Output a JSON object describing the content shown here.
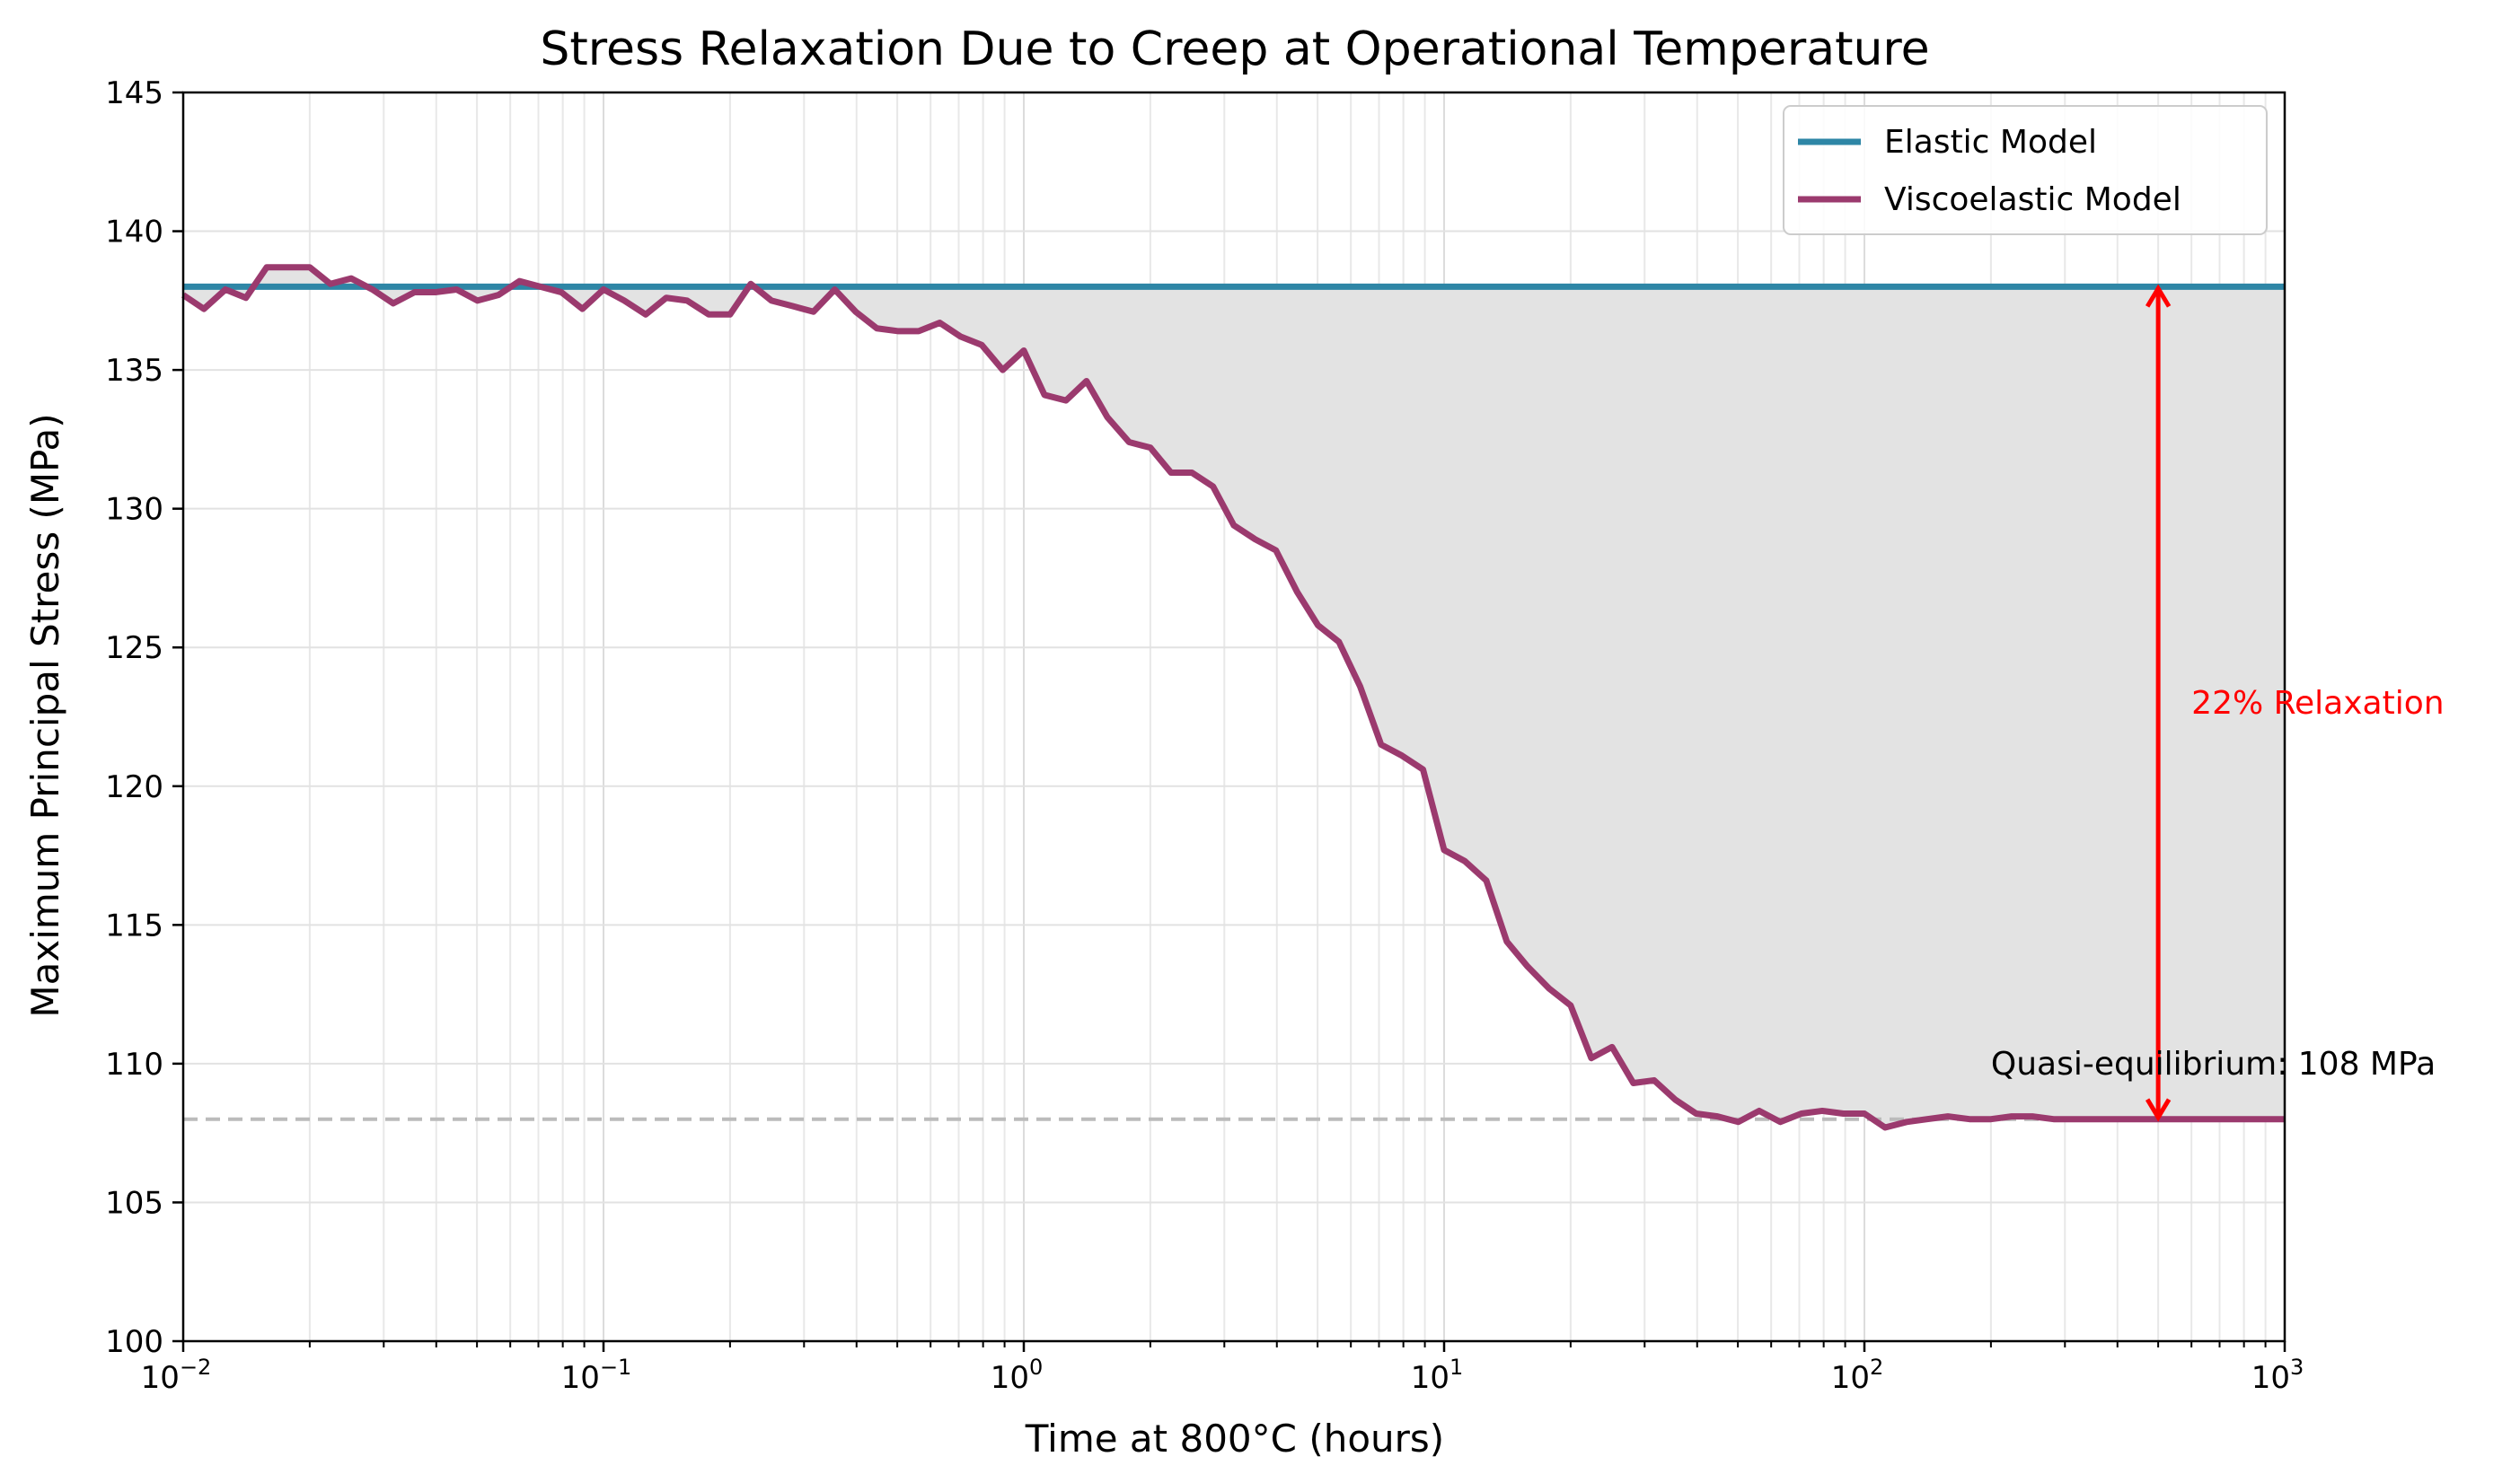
{
  "chart_data": {
    "type": "line",
    "title": "Stress Relaxation Due to Creep at Operational Temperature",
    "xlabel": "Time at 800°C (hours)",
    "ylabel": "Maximum Principal Stress (MPa)",
    "x_scale": "log",
    "xlim": [
      0.01,
      1000
    ],
    "ylim": [
      100,
      145
    ],
    "x_ticks": [
      {
        "value": 0.01,
        "base": "10",
        "exp": "−2"
      },
      {
        "value": 0.1,
        "base": "10",
        "exp": "−1"
      },
      {
        "value": 1,
        "base": "10",
        "exp": "0"
      },
      {
        "value": 10,
        "base": "10",
        "exp": "1"
      },
      {
        "value": 100,
        "base": "10",
        "exp": "2"
      },
      {
        "value": 1000,
        "base": "10",
        "exp": "3"
      }
    ],
    "y_ticks": [
      100,
      105,
      110,
      115,
      120,
      125,
      130,
      135,
      140,
      145
    ],
    "grid": true,
    "legend": "top-right",
    "series": [
      {
        "name": "Elastic Model",
        "color": "#2E86A6",
        "x": [
          0.01,
          1000
        ],
        "y": [
          138,
          138
        ]
      },
      {
        "name": "Viscoelastic Model",
        "color": "#9B3A6E",
        "x": [
          0.01,
          0.0112,
          0.0126,
          0.0141,
          0.0158,
          0.0178,
          0.02,
          0.0224,
          0.0251,
          0.0282,
          0.0316,
          0.0355,
          0.0398,
          0.0447,
          0.0501,
          0.0562,
          0.0631,
          0.0708,
          0.0794,
          0.0891,
          0.1,
          0.112,
          0.126,
          0.141,
          0.158,
          0.178,
          0.2,
          0.224,
          0.251,
          0.282,
          0.316,
          0.355,
          0.398,
          0.447,
          0.501,
          0.562,
          0.631,
          0.708,
          0.794,
          0.891,
          1.0,
          1.12,
          1.26,
          1.41,
          1.58,
          1.78,
          2.0,
          2.24,
          2.51,
          2.82,
          3.16,
          3.55,
          3.98,
          4.47,
          5.01,
          5.62,
          6.31,
          7.08,
          7.94,
          8.91,
          10.0,
          11.2,
          12.6,
          14.1,
          15.8,
          17.8,
          20.0,
          22.4,
          25.1,
          28.2,
          31.6,
          35.5,
          39.8,
          44.7,
          50.1,
          56.2,
          63.1,
          70.8,
          79.4,
          89.1,
          100,
          112,
          126,
          141,
          158,
          178,
          200,
          224,
          251,
          282,
          316,
          355,
          398,
          447,
          501,
          562,
          631,
          708,
          794,
          891,
          1000
        ],
        "y": [
          137.7,
          137.2,
          137.9,
          137.6,
          138.7,
          138.7,
          138.7,
          138.1,
          138.3,
          137.9,
          137.4,
          137.8,
          137.8,
          137.9,
          137.5,
          137.7,
          138.2,
          138.0,
          137.8,
          137.2,
          137.9,
          137.5,
          137.0,
          137.6,
          137.5,
          137.0,
          137.0,
          138.1,
          137.5,
          137.3,
          137.1,
          137.9,
          137.1,
          136.5,
          136.4,
          136.4,
          136.7,
          136.2,
          135.9,
          135.0,
          135.7,
          134.1,
          133.9,
          134.6,
          133.3,
          132.4,
          132.2,
          131.3,
          131.3,
          130.8,
          129.4,
          128.9,
          128.5,
          127.0,
          125.8,
          125.2,
          123.6,
          121.5,
          121.1,
          120.6,
          117.7,
          117.3,
          116.6,
          114.4,
          113.5,
          112.7,
          112.1,
          110.2,
          110.6,
          109.3,
          109.4,
          108.7,
          108.2,
          108.1,
          107.9,
          108.3,
          107.9,
          108.2,
          108.3,
          108.2,
          108.2,
          107.7,
          107.9,
          108.0,
          108.1,
          108.0,
          108.0,
          108.1,
          108.1,
          108.0,
          108.0,
          108.0,
          108.0,
          108.0,
          108.0,
          108.0,
          108.0,
          108.0,
          108.0,
          108.0,
          108.0
        ]
      }
    ],
    "fill_between": {
      "x_from": 0.01,
      "x_to": 1000,
      "upper": 138,
      "color": "#e3e3e3"
    },
    "reference_line": {
      "y": 108,
      "color": "#bbbbbb",
      "style": "dashed"
    },
    "annotations": [
      {
        "text": "22% Relaxation",
        "x": 600,
        "y": 123,
        "color": "#ff0000"
      },
      {
        "text": "Quasi-equilibrium: 108 MPa",
        "x": 200,
        "y": 110,
        "color": "#000000"
      }
    ],
    "arrow": {
      "x": 500,
      "y_from": 108,
      "y_to": 138,
      "color": "#ff0000"
    }
  }
}
